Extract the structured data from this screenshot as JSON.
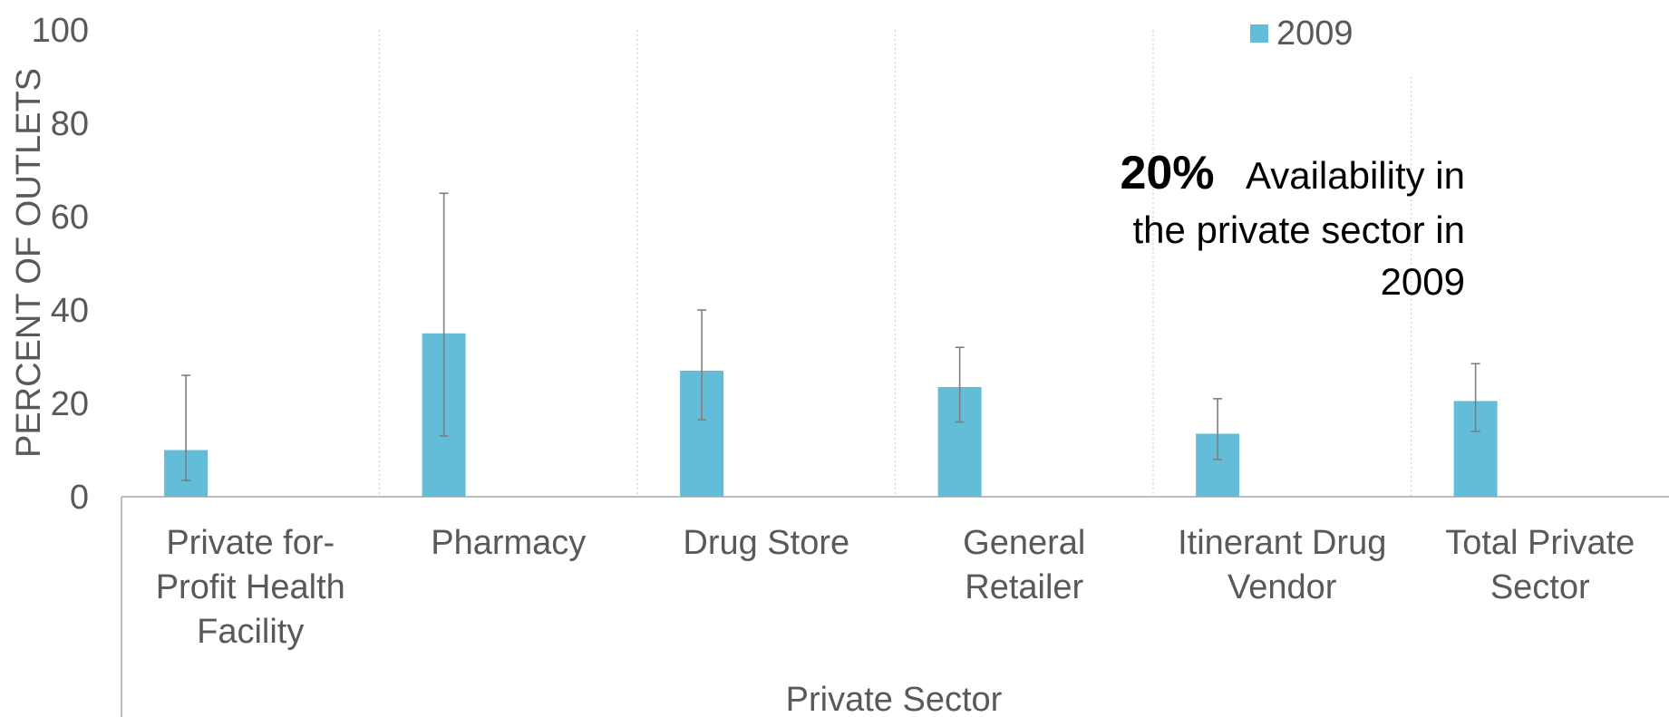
{
  "chart_data": {
    "type": "bar",
    "categories": [
      [
        "Private for-",
        "Profit Health",
        "Facility"
      ],
      [
        "Pharmacy"
      ],
      [
        "Drug Store"
      ],
      [
        "General",
        "Retailer"
      ],
      [
        "Itinerant Drug",
        "Vendor"
      ],
      [
        "Total Private",
        "Sector"
      ]
    ],
    "series": [
      {
        "name": "2009",
        "color": "#63bdd8",
        "values": [
          10,
          35,
          27,
          23.5,
          13.5,
          20.5
        ],
        "error_low": [
          3.5,
          13,
          16.5,
          16,
          8,
          14
        ],
        "error_high": [
          26,
          65,
          40,
          32,
          21,
          28.5
        ]
      }
    ],
    "ylabel": "PERCENT OF OUTLETS",
    "xlabel": "Private Sector",
    "ylim": [
      0,
      100
    ],
    "yticks": [
      0,
      20,
      40,
      60,
      80,
      100
    ],
    "legend": "top-right",
    "grid": "vertical dotted separators",
    "annotation": {
      "highlight": "20%",
      "line1": "Availability in",
      "line2": "the private sector in",
      "line3": "2009"
    }
  }
}
